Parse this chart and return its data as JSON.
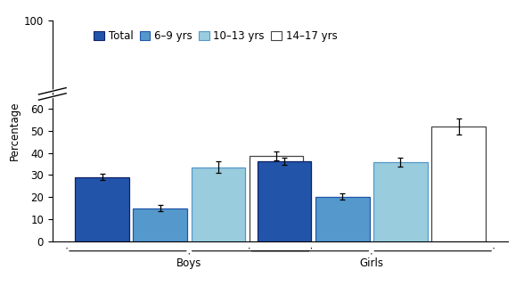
{
  "groups": [
    "Boys",
    "Girls"
  ],
  "categories": [
    "Total",
    "6–9 yrs",
    "10–13 yrs",
    "14–17 yrs"
  ],
  "values": {
    "Boys": [
      29.1,
      14.9,
      33.5,
      38.8
    ],
    "Girls": [
      36.2,
      20.2,
      35.9,
      51.9
    ]
  },
  "errors": {
    "Boys": [
      1.5,
      1.5,
      2.5,
      2.0
    ],
    "Girls": [
      1.8,
      1.5,
      2.0,
      3.5
    ]
  },
  "bar_colors": [
    "#2255aa",
    "#5599cc",
    "#99ccdd",
    "#ffffff"
  ],
  "bar_edgecolors": [
    "#112266",
    "#2255aa",
    "#5599cc",
    "#444444"
  ],
  "legend_labels": [
    "Total",
    "6–9 yrs",
    "10–13 yrs",
    "14–17 yrs"
  ],
  "ylabel": "Percentage",
  "ylim": [
    0,
    100
  ],
  "yticks": [
    0,
    10,
    20,
    30,
    40,
    50,
    60,
    100
  ],
  "ytick_labels": [
    "0",
    "10",
    "20",
    "30",
    "40",
    "50",
    "60",
    "100"
  ],
  "background_color": "#ffffff",
  "axis_fontsize": 8.5,
  "legend_fontsize": 8.5
}
